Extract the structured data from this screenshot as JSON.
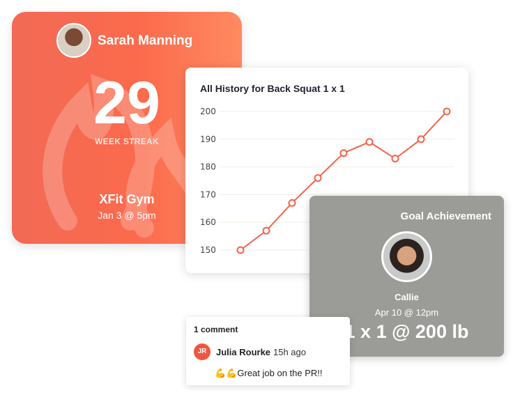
{
  "streak_card": {
    "user_name": "Sarah Manning",
    "streak_count": "29",
    "streak_label": "WEEK STREAK",
    "gym": "XFit Gym",
    "date": "Jan 3 @ 5pm",
    "colors": {
      "gradient_start": "#f26a55",
      "gradient_end": "#ff8a60"
    }
  },
  "chart_data": {
    "type": "line",
    "title": "All History for Back Squat 1 x 1",
    "xlabel": "",
    "ylabel": "",
    "ylim": [
      150,
      200
    ],
    "yticks": [
      "150",
      "160",
      "170",
      "180",
      "190",
      "200"
    ],
    "grid": true,
    "values": [
      150,
      157,
      167,
      176,
      185,
      189,
      183,
      190,
      200
    ],
    "color": "#f86048"
  },
  "goal_card": {
    "title": "Goal Achievement",
    "name": "Callie",
    "date": "Apr 10 @ 12pm",
    "result": "1 x 1 @ 200 lb"
  },
  "comment_card": {
    "count": "1 comment",
    "author_initials": "JR",
    "author": "Julia Rourke",
    "time": "15h ago",
    "text": "💪💪Great job on the PR!!"
  }
}
